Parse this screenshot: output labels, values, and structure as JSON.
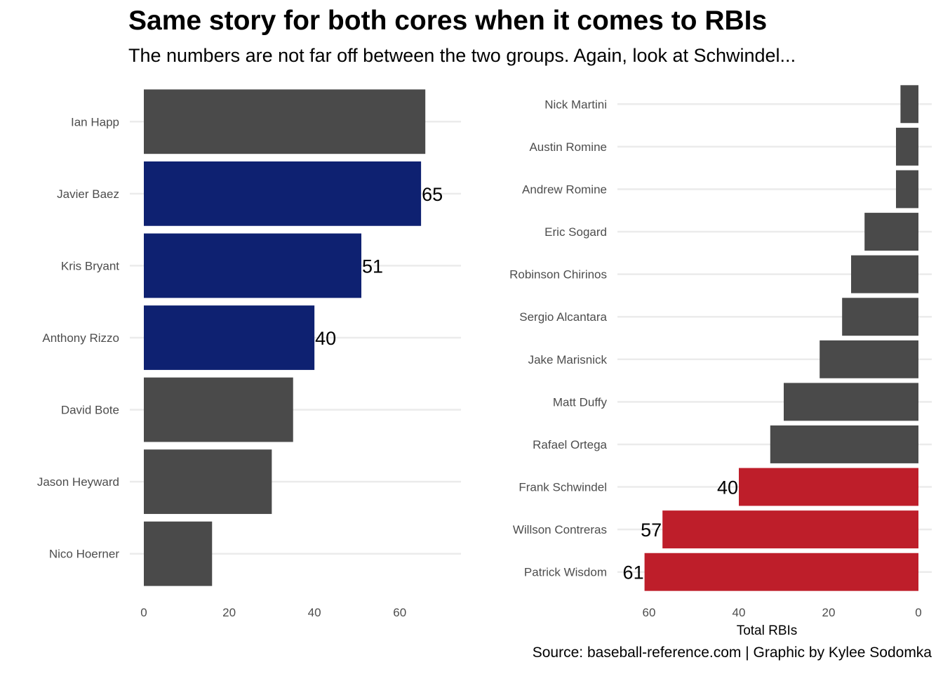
{
  "title": "Same story for both cores when it comes to RBIs",
  "subtitle": "The numbers are not far off between the two groups. Again, look at Schwindel...",
  "caption": "Source: baseball-reference.com | Graphic by Kylee Sodomka",
  "colors": {
    "default_bar": "#4a4a4a",
    "highlight_left": "#0e2171",
    "highlight_right": "#be1e2a",
    "gridline": "#ebebeb"
  },
  "chart_data": [
    {
      "type": "bar",
      "orientation": "horizontal",
      "categories": [
        "Ian Happ",
        "Javier Baez",
        "Kris Bryant",
        "Anthony Rizzo",
        "David Bote",
        "Jason Heyward",
        "Nico Hoerner"
      ],
      "values": [
        66,
        65,
        51,
        40,
        35,
        30,
        16
      ],
      "highlighted": [
        false,
        true,
        true,
        true,
        false,
        false,
        false
      ],
      "data_labels": [
        "",
        "65",
        "51",
        "40",
        "",
        "",
        ""
      ],
      "xlim": [
        0,
        70
      ],
      "xticks": [
        0,
        20,
        40,
        60
      ],
      "xlabel": "",
      "grid": true
    },
    {
      "type": "bar",
      "orientation": "horizontal",
      "direction": "reversed",
      "categories": [
        "Nick Martini",
        "Austin Romine",
        "Andrew Romine",
        "Eric Sogard",
        "Robinson Chirinos",
        "Sergio Alcantara",
        "Jake Marisnick",
        "Matt Duffy",
        "Rafael Ortega",
        "Frank Schwindel",
        "Willson Contreras",
        "Patrick Wisdom"
      ],
      "values": [
        4,
        5,
        5,
        12,
        15,
        17,
        22,
        30,
        33,
        40,
        57,
        61
      ],
      "highlighted": [
        false,
        false,
        false,
        false,
        false,
        false,
        false,
        false,
        false,
        true,
        true,
        true
      ],
      "data_labels": [
        "",
        "",
        "",
        "",
        "",
        "",
        "",
        "",
        "",
        "40",
        "57",
        "61"
      ],
      "xlim": [
        0,
        60
      ],
      "xticks": [
        60,
        40,
        20,
        0
      ],
      "xlabel": "Total RBIs",
      "grid": true
    }
  ]
}
